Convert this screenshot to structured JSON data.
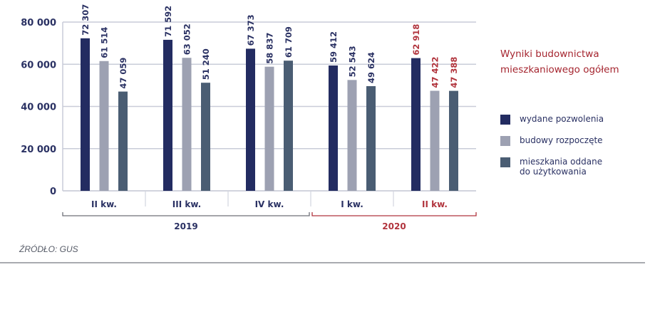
{
  "chart_data": {
    "type": "bar",
    "title": "Wyniki budownictwa mieszkaniowego ogółem",
    "title_lines": [
      "Wyniki budownictwa",
      "mieszkaniowego ogółem"
    ],
    "categories": [
      "II kw.",
      "III kw.",
      "IV kw.",
      "I kw.",
      "II kw."
    ],
    "category_years": [
      "2019",
      "2019",
      "2019",
      "2020",
      "2020"
    ],
    "year_groups": [
      {
        "label": "2019",
        "from": 0,
        "to": 2,
        "color": "#6d6f78"
      },
      {
        "label": "2020",
        "from": 3,
        "to": 4,
        "color": "#b1343d"
      }
    ],
    "highlight_category_index": 4,
    "series": [
      {
        "name": "wydane pozwolenia",
        "name_lines": [
          "wydane pozwolenia"
        ],
        "color": "#232c61",
        "values": [
          72307,
          71592,
          67373,
          59412,
          62918
        ],
        "labels": [
          "72 307",
          "71 592",
          "67 373",
          "59 412",
          "62 918"
        ]
      },
      {
        "name": "budowy rozpoczęte",
        "name_lines": [
          "budowy rozpoczęte"
        ],
        "color": "#9da1b2",
        "values": [
          61514,
          63052,
          58837,
          52543,
          47422
        ],
        "labels": [
          "61 514",
          "63 052",
          "58 837",
          "52 543",
          "47 422"
        ]
      },
      {
        "name": "mieszkania oddane do użytkowania",
        "name_lines": [
          "mieszkania oddane",
          "do użytkowania"
        ],
        "color": "#4a5d73",
        "values": [
          47059,
          51240,
          61709,
          49624,
          47388
        ],
        "labels": [
          "47 059",
          "51 240",
          "61 709",
          "49 624",
          "47 388"
        ]
      }
    ],
    "ylim": [
      0,
      80000
    ],
    "yticks": [
      0,
      20000,
      40000,
      60000,
      80000
    ],
    "ytick_labels": [
      "0",
      "20 000",
      "40 000",
      "60 000",
      "80 000"
    ],
    "grid": true,
    "legend_position": "right",
    "colors": {
      "axis_text": "#2a3163",
      "highlight": "#b1343d",
      "grid": "#c9ccd8"
    }
  },
  "source": "ŹRÓDŁO: GUS"
}
